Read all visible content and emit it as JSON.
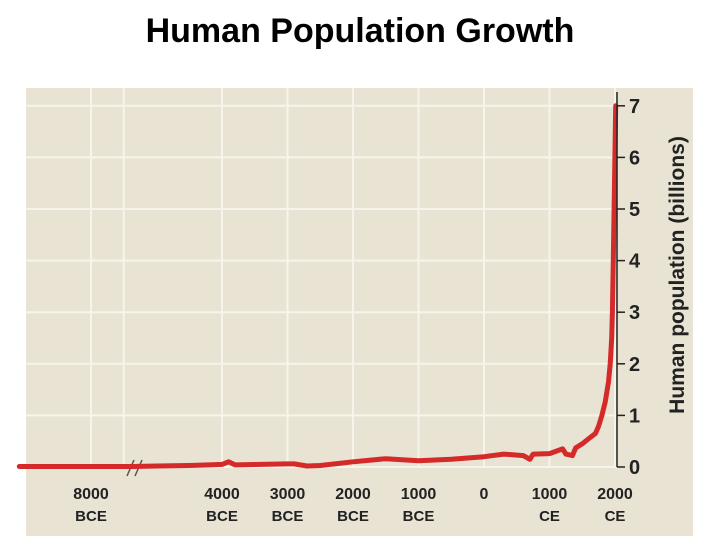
{
  "title": "Human Population Growth",
  "colors": {
    "plot_background": "#e8e3d3",
    "grid": "#f7f4ec",
    "line": "#d42a2a",
    "axis": "#222222"
  },
  "chart_data": {
    "type": "line",
    "title": "Human Population Growth",
    "xlabel": "",
    "ylabel": "Human population (billions)",
    "ylim": [
      0,
      7
    ],
    "yticks": [
      "0",
      "1",
      "2",
      "3",
      "4",
      "5",
      "6",
      "7"
    ],
    "y_axis_side": "right",
    "grid": true,
    "x_axis_break_after": "8000 BCE",
    "xticks": [
      {
        "year": -8000,
        "line1": "8000",
        "line2": "BCE"
      },
      {
        "year": -4000,
        "line1": "4000",
        "line2": "BCE"
      },
      {
        "year": -3000,
        "line1": "3000",
        "line2": "BCE"
      },
      {
        "year": -2000,
        "line1": "2000",
        "line2": "BCE"
      },
      {
        "year": -1000,
        "line1": "1000",
        "line2": "BCE"
      },
      {
        "year": 0,
        "line1": "0",
        "line2": ""
      },
      {
        "year": 1000,
        "line1": "1000",
        "line2": "CE"
      },
      {
        "year": 2000,
        "line1": "2000",
        "line2": "CE"
      }
    ],
    "series": [
      {
        "values": [
          [
            -9000,
            0.01
          ],
          [
            -8000,
            0.01
          ],
          [
            -7400,
            0.01
          ],
          [
            -5000,
            0.02
          ],
          [
            -4500,
            0.03
          ],
          [
            -4200,
            0.04
          ],
          [
            -4000,
            0.05
          ],
          [
            -3900,
            0.1
          ],
          [
            -3800,
            0.04
          ],
          [
            -3000,
            0.06
          ],
          [
            -2900,
            0.06
          ],
          [
            -2700,
            0.02
          ],
          [
            -2500,
            0.03
          ],
          [
            -2000,
            0.1
          ],
          [
            -1500,
            0.16
          ],
          [
            -1000,
            0.12
          ],
          [
            -500,
            0.15
          ],
          [
            0,
            0.2
          ],
          [
            300,
            0.25
          ],
          [
            600,
            0.22
          ],
          [
            700,
            0.15
          ],
          [
            750,
            0.25
          ],
          [
            1000,
            0.26
          ],
          [
            1200,
            0.35
          ],
          [
            1250,
            0.25
          ],
          [
            1350,
            0.22
          ],
          [
            1400,
            0.37
          ],
          [
            1500,
            0.45
          ],
          [
            1600,
            0.55
          ],
          [
            1700,
            0.65
          ],
          [
            1750,
            0.79
          ],
          [
            1800,
            1.0
          ],
          [
            1850,
            1.26
          ],
          [
            1900,
            1.65
          ],
          [
            1927,
            2.0
          ],
          [
            1950,
            2.5
          ],
          [
            1960,
            3.0
          ],
          [
            1974,
            4.0
          ],
          [
            1987,
            5.0
          ],
          [
            1999,
            6.0
          ],
          [
            2011,
            7.0
          ]
        ]
      }
    ]
  }
}
